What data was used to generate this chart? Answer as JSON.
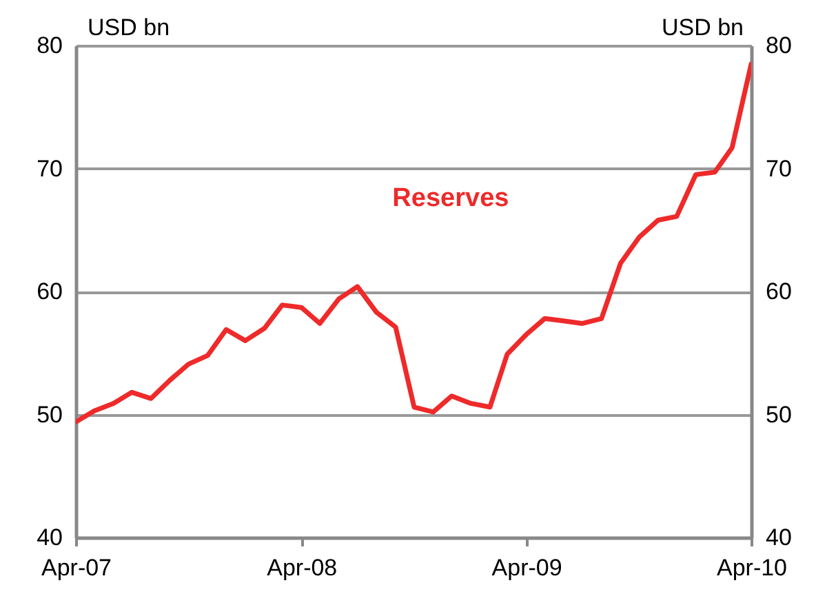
{
  "chart_data": {
    "type": "line",
    "ylabel": "USD bn",
    "y2label": "USD bn",
    "x": [
      "2007-04",
      "2007-05",
      "2007-06",
      "2007-07",
      "2007-08",
      "2007-09",
      "2007-10",
      "2007-11",
      "2007-12",
      "2008-01",
      "2008-02",
      "2008-03",
      "2008-04",
      "2008-05",
      "2008-06",
      "2008-07",
      "2008-08",
      "2008-09",
      "2008-10",
      "2008-11",
      "2008-12",
      "2009-01",
      "2009-02",
      "2009-03",
      "2009-04",
      "2009-05",
      "2009-06",
      "2009-07",
      "2009-08",
      "2009-09",
      "2009-10",
      "2009-11",
      "2009-12",
      "2010-01",
      "2010-02",
      "2010-03",
      "2010-04"
    ],
    "series": [
      {
        "name": "Reserves",
        "color": "#ee2a2a",
        "values": [
          49.4,
          50.3,
          50.9,
          51.8,
          51.3,
          52.8,
          54.1,
          54.8,
          56.9,
          56.0,
          57.0,
          58.9,
          58.7,
          57.4,
          59.4,
          60.4,
          58.3,
          57.1,
          50.6,
          50.2,
          51.5,
          50.9,
          50.6,
          54.9,
          56.5,
          57.8,
          57.6,
          57.4,
          57.8,
          62.3,
          64.4,
          65.8,
          66.1,
          69.5,
          69.7,
          71.7,
          78.5
        ]
      }
    ],
    "xlim": [
      "2007-04",
      "2010-04"
    ],
    "xticks": [
      {
        "value": "2007-04",
        "label": "Apr-07"
      },
      {
        "value": "2008-04",
        "label": "Apr-08"
      },
      {
        "value": "2009-04",
        "label": "Apr-09"
      },
      {
        "value": "2010-04",
        "label": "Apr-10"
      }
    ],
    "ylim": [
      40,
      80
    ],
    "yticks": [
      40,
      50,
      60,
      70,
      80
    ],
    "y2lim": [
      40,
      80
    ],
    "y2ticks": [
      40,
      50,
      60,
      70,
      80
    ],
    "grid": "y",
    "line_style": "solid",
    "marker": "none"
  }
}
